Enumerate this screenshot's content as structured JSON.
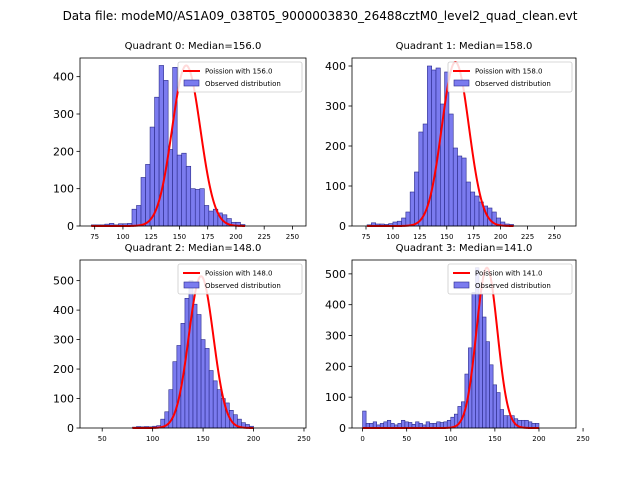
{
  "figure": {
    "suptitle": "Data file: modeM0/AS1A09_038T05_9000003830_26488cztM0_level2_quad_clean.evt"
  },
  "colors": {
    "bar_fill": "#7b7bef",
    "bar_edge": "#2a2a8a",
    "curve": "#ff0000"
  },
  "chart_data": [
    {
      "type": "bar",
      "title": "Quadrant 0: Median=156.0",
      "legend": [
        "Poission with 156.0",
        "Observed distribution"
      ],
      "legend_position": "top-right",
      "xlim": [
        62,
        262
      ],
      "ylim": [
        0,
        450
      ],
      "xticks": [
        75,
        100,
        125,
        150,
        175,
        200,
        225,
        250
      ],
      "yticks": [
        0,
        100,
        200,
        300,
        400
      ],
      "bin_start": 72,
      "bin_width": 4,
      "values": [
        3,
        3,
        3,
        5,
        7,
        3,
        6,
        6,
        7,
        45,
        55,
        130,
        165,
        265,
        345,
        430,
        390,
        205,
        425,
        190,
        195,
        160,
        100,
        98,
        100,
        55,
        40,
        45,
        35,
        30,
        20,
        10,
        10,
        4
      ],
      "poisson_mean": 156.0,
      "poisson_peak": 430
    },
    {
      "type": "bar",
      "title": "Quadrant 1: Median=158.0",
      "legend": [
        "Poission with 158.0",
        "Observed distribution"
      ],
      "legend_position": "top-right",
      "xlim": [
        62,
        270
      ],
      "ylim": [
        0,
        420
      ],
      "xticks": [
        75,
        100,
        125,
        150,
        175,
        200,
        225,
        250
      ],
      "yticks": [
        0,
        100,
        200,
        300,
        400
      ],
      "bin_start": 76,
      "bin_width": 4,
      "values": [
        3,
        8,
        5,
        5,
        4,
        6,
        10,
        12,
        20,
        35,
        85,
        135,
        235,
        255,
        400,
        390,
        395,
        305,
        385,
        280,
        195,
        175,
        170,
        110,
        85,
        75,
        60,
        50,
        45,
        35,
        20,
        10,
        5,
        4
      ],
      "poisson_mean": 158.0,
      "poisson_peak": 410
    },
    {
      "type": "bar",
      "title": "Quadrant 2: Median=148.0",
      "legend": [
        "Poission with 148.0",
        "Observed distribution"
      ],
      "legend_position": "top-right",
      "xlim": [
        28,
        252
      ],
      "ylim": [
        0,
        570
      ],
      "xticks": [
        50,
        100,
        150,
        200,
        250
      ],
      "yticks": [
        0,
        100,
        200,
        300,
        400,
        500
      ],
      "bin_start": 80,
      "bin_width": 4,
      "values": [
        3,
        5,
        4,
        5,
        4,
        6,
        8,
        30,
        55,
        130,
        225,
        280,
        355,
        440,
        500,
        420,
        385,
        300,
        270,
        195,
        160,
        130,
        100,
        85,
        60,
        45,
        30,
        18,
        12,
        6
      ],
      "poisson_mean": 148.0,
      "poisson_peak": 515
    },
    {
      "type": "bar",
      "title": "Quadrant 3: Median=141.0",
      "legend": [
        "Poission with 141.0",
        "Observed distribution"
      ],
      "legend_position": "top-right",
      "xlim": [
        -12,
        242
      ],
      "ylim": [
        0,
        545
      ],
      "xticks": [
        0,
        50,
        100,
        150,
        200,
        250
      ],
      "yticks": [
        0,
        100,
        200,
        300,
        400,
        500
      ],
      "bin_start": 0,
      "bin_width": 4,
      "values": [
        55,
        15,
        15,
        20,
        10,
        15,
        20,
        25,
        15,
        10,
        15,
        25,
        20,
        18,
        12,
        20,
        15,
        10,
        20,
        15,
        15,
        20,
        18,
        20,
        25,
        35,
        45,
        70,
        85,
        175,
        260,
        440,
        520,
        435,
        360,
        280,
        205,
        140,
        115,
        60,
        40,
        40,
        40,
        30,
        25,
        25,
        25,
        20,
        15,
        15
      ],
      "poisson_mean": 141.0,
      "poisson_peak": 520
    }
  ]
}
